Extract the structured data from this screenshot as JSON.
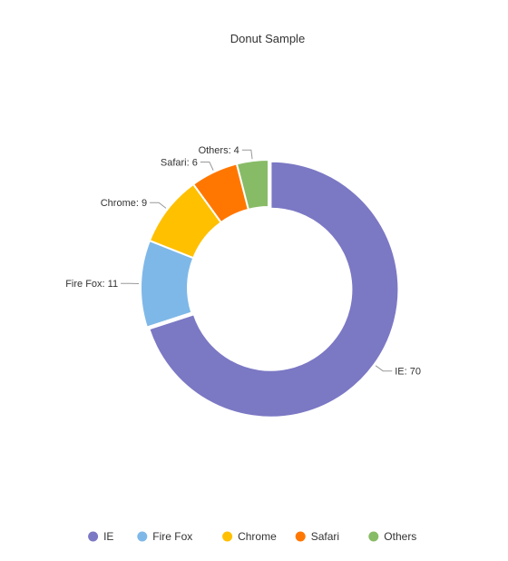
{
  "chart_data": {
    "type": "pie",
    "variant": "donut",
    "title": "Donut Sample",
    "categories": [
      "IE",
      "Fire Fox",
      "Chrome",
      "Safari",
      "Others"
    ],
    "values": [
      70,
      11,
      9,
      6,
      4
    ],
    "colors": [
      "#7b78c4",
      "#7eb8e8",
      "#ffc000",
      "#ff7700",
      "#88bb66"
    ],
    "labels": [
      "IE: 70",
      "Fire Fox: 11",
      "Chrome: 9",
      "Safari: 6",
      "Others: 4"
    ],
    "legend": {
      "placement": "bottom",
      "items": [
        "IE",
        "Fire Fox",
        "Chrome",
        "Safari",
        "Others"
      ]
    }
  }
}
